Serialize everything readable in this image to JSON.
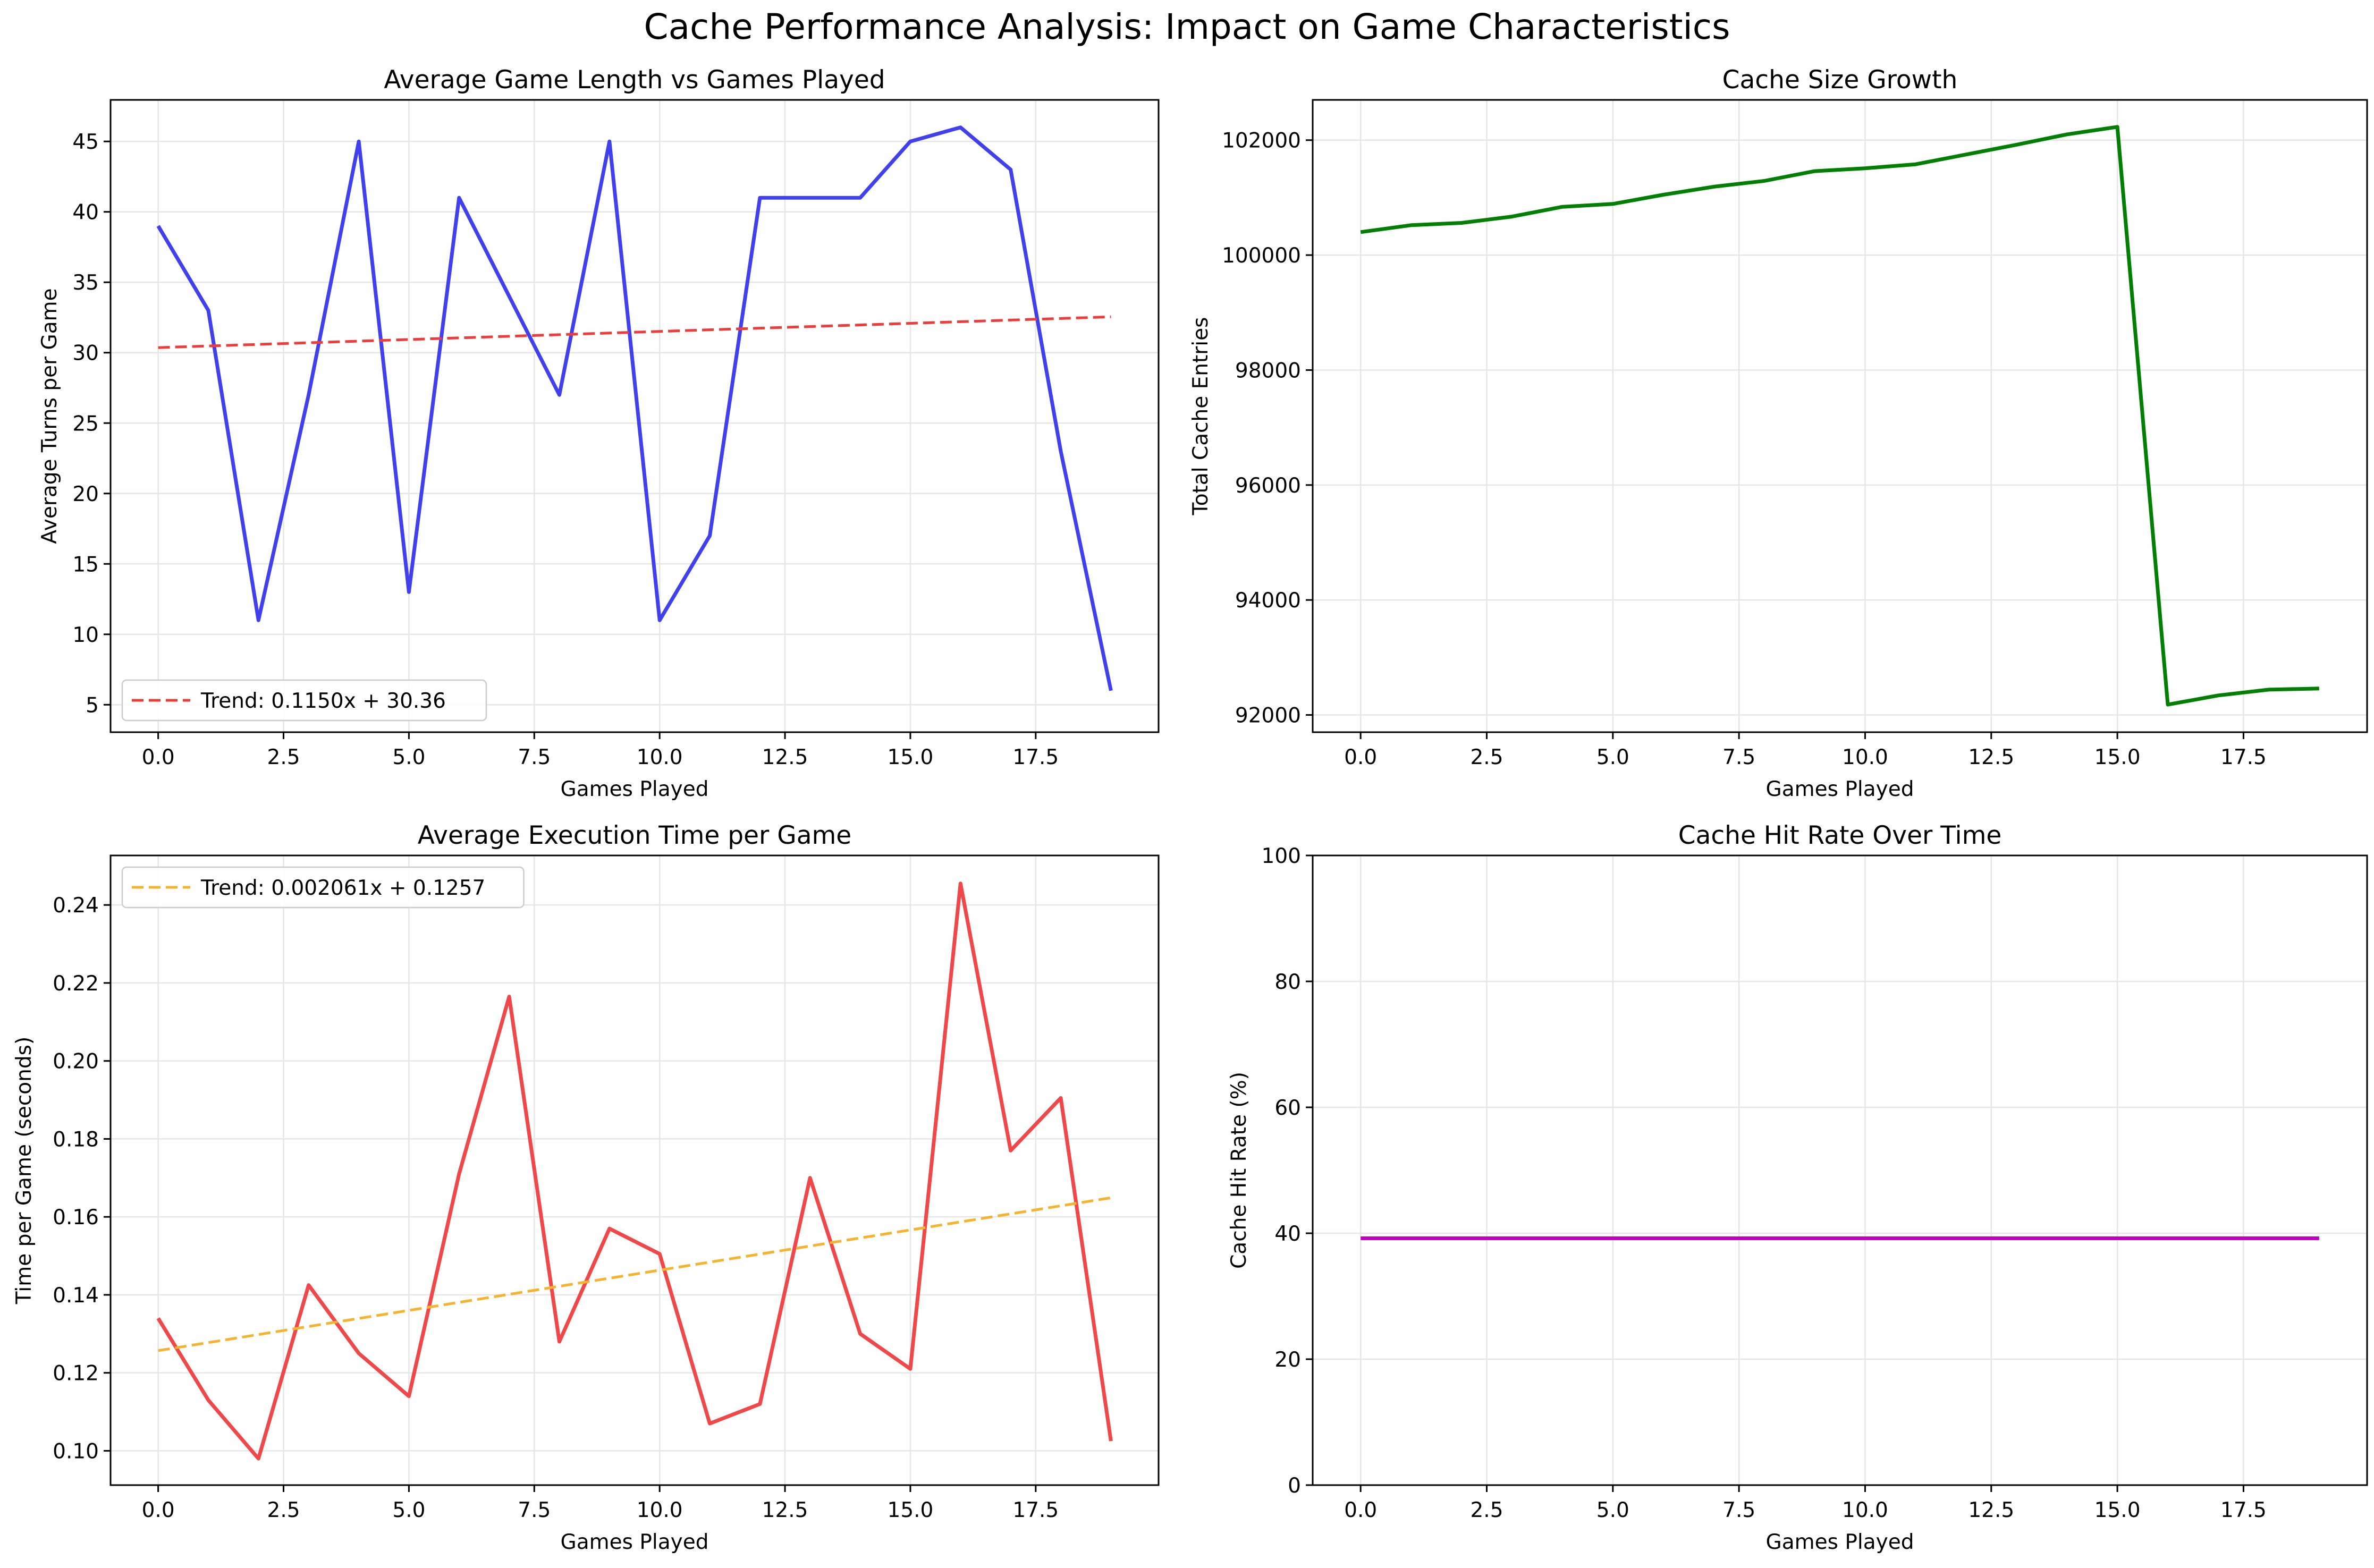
{
  "figure": {
    "suptitle": "Cache Performance Analysis: Impact on Game Characteristics"
  },
  "colors": {
    "blue": "#4040ee",
    "red_dashed": "#ee3b3b",
    "green": "#008000",
    "red": "#f04848",
    "orange": "#f5b32e",
    "magenta": "#bf00bf",
    "grid": "#e6e6e6"
  },
  "chart_data": [
    {
      "type": "line",
      "title": "Average Game Length vs Games Played",
      "xlabel": "Games Played",
      "ylabel": "Average Turns per Game",
      "xlim": [
        -0.95,
        19.95
      ],
      "ylim": [
        3.05,
        47.95
      ],
      "xticks": [
        0,
        2.5,
        5,
        7.5,
        10,
        12.5,
        15,
        17.5
      ],
      "xtick_labels": [
        "0.0",
        "2.5",
        "5.0",
        "7.5",
        "10.0",
        "12.5",
        "15.0",
        "17.5"
      ],
      "yticks": [
        5,
        10,
        15,
        20,
        25,
        30,
        35,
        40,
        45
      ],
      "ytick_labels": [
        "5",
        "10",
        "15",
        "20",
        "25",
        "30",
        "35",
        "40",
        "45"
      ],
      "grid": true,
      "legend_loc": "lower-left",
      "series": [
        {
          "x": [
            0,
            1,
            2,
            3,
            4,
            5,
            6,
            7,
            8,
            9,
            10,
            11,
            12,
            13,
            14,
            15,
            16,
            17,
            18,
            19
          ],
          "values": [
            39,
            33,
            11,
            27,
            45,
            13,
            41,
            34,
            27,
            45,
            11,
            17,
            41,
            41,
            41,
            45,
            46,
            43,
            23,
            6
          ],
          "color": "#4040ee",
          "style": "solid"
        },
        {
          "name": "Trend: 0.1150x + 30.36",
          "x": [
            0,
            19
          ],
          "values": [
            30.36,
            32.545
          ],
          "color": "#ee3b3b",
          "style": "dashed"
        }
      ]
    },
    {
      "type": "line",
      "title": "Cache Size Growth",
      "xlabel": "Games Played",
      "ylabel": "Total Cache Entries",
      "xlim": [
        -0.95,
        19.95
      ],
      "ylim": [
        91700,
        102700
      ],
      "xticks": [
        0,
        2.5,
        5,
        7.5,
        10,
        12.5,
        15,
        17.5
      ],
      "xtick_labels": [
        "0.0",
        "2.5",
        "5.0",
        "7.5",
        "10.0",
        "12.5",
        "15.0",
        "17.5"
      ],
      "yticks": [
        92000,
        94000,
        96000,
        98000,
        100000,
        102000
      ],
      "ytick_labels": [
        "92000",
        "94000",
        "96000",
        "98000",
        "100000",
        "102000"
      ],
      "grid": true,
      "series": [
        {
          "x": [
            0,
            1,
            2,
            3,
            4,
            5,
            6,
            7,
            8,
            9,
            10,
            11,
            12,
            13,
            14,
            15,
            16,
            17,
            18,
            19
          ],
          "values": [
            100400,
            100520,
            100560,
            100670,
            100840,
            100890,
            101050,
            101190,
            101290,
            101460,
            101510,
            101580,
            101750,
            101920,
            102100,
            102230,
            92180,
            92340,
            92440,
            92460
          ],
          "color": "#008000",
          "style": "solid"
        }
      ]
    },
    {
      "type": "line",
      "title": "Average Execution Time per Game",
      "xlabel": "Games Played",
      "ylabel": "Time per Game (seconds)",
      "xlim": [
        -0.95,
        19.95
      ],
      "ylim": [
        0.0912,
        0.2527
      ],
      "xticks": [
        0,
        2.5,
        5,
        7.5,
        10,
        12.5,
        15,
        17.5
      ],
      "xtick_labels": [
        "0.0",
        "2.5",
        "5.0",
        "7.5",
        "10.0",
        "12.5",
        "15.0",
        "17.5"
      ],
      "yticks": [
        0.1,
        0.12,
        0.14,
        0.16,
        0.18,
        0.2,
        0.22,
        0.24
      ],
      "ytick_labels": [
        "0.10",
        "0.12",
        "0.14",
        "0.16",
        "0.18",
        "0.20",
        "0.22",
        "0.24"
      ],
      "grid": true,
      "legend_loc": "upper-left",
      "series": [
        {
          "x": [
            0,
            1,
            2,
            3,
            4,
            5,
            6,
            7,
            8,
            9,
            10,
            11,
            12,
            13,
            14,
            15,
            16,
            17,
            18,
            19
          ],
          "values": [
            0.134,
            0.113,
            0.098,
            0.1425,
            0.125,
            0.114,
            0.171,
            0.2165,
            0.128,
            0.157,
            0.1505,
            0.107,
            0.112,
            0.17,
            0.13,
            0.121,
            0.2455,
            0.177,
            0.1905,
            0.1025
          ],
          "color": "#f04848",
          "style": "solid"
        },
        {
          "name": "Trend: 0.002061x + 0.1257",
          "x": [
            0,
            19
          ],
          "values": [
            0.1257,
            0.1649
          ],
          "color": "#f5b32e",
          "style": "dashed"
        }
      ]
    },
    {
      "type": "line",
      "title": "Cache Hit Rate Over Time",
      "xlabel": "Games Played",
      "ylabel": "Cache Hit Rate (%)",
      "xlim": [
        -0.95,
        19.95
      ],
      "ylim": [
        0,
        100
      ],
      "xticks": [
        0,
        2.5,
        5,
        7.5,
        10,
        12.5,
        15,
        17.5
      ],
      "xtick_labels": [
        "0.0",
        "2.5",
        "5.0",
        "7.5",
        "10.0",
        "12.5",
        "15.0",
        "17.5"
      ],
      "yticks": [
        0,
        20,
        40,
        60,
        80,
        100
      ],
      "ytick_labels": [
        "0",
        "20",
        "40",
        "60",
        "80",
        "100"
      ],
      "grid": true,
      "series": [
        {
          "x": [
            0,
            1,
            2,
            3,
            4,
            5,
            6,
            7,
            8,
            9,
            10,
            11,
            12,
            13,
            14,
            15,
            16,
            17,
            18,
            19
          ],
          "values": [
            39.2,
            39.2,
            39.2,
            39.2,
            39.2,
            39.2,
            39.2,
            39.2,
            39.2,
            39.2,
            39.2,
            39.2,
            39.2,
            39.2,
            39.2,
            39.2,
            39.2,
            39.2,
            39.2,
            39.2
          ],
          "color": "#bf00bf",
          "style": "solid"
        }
      ]
    }
  ]
}
